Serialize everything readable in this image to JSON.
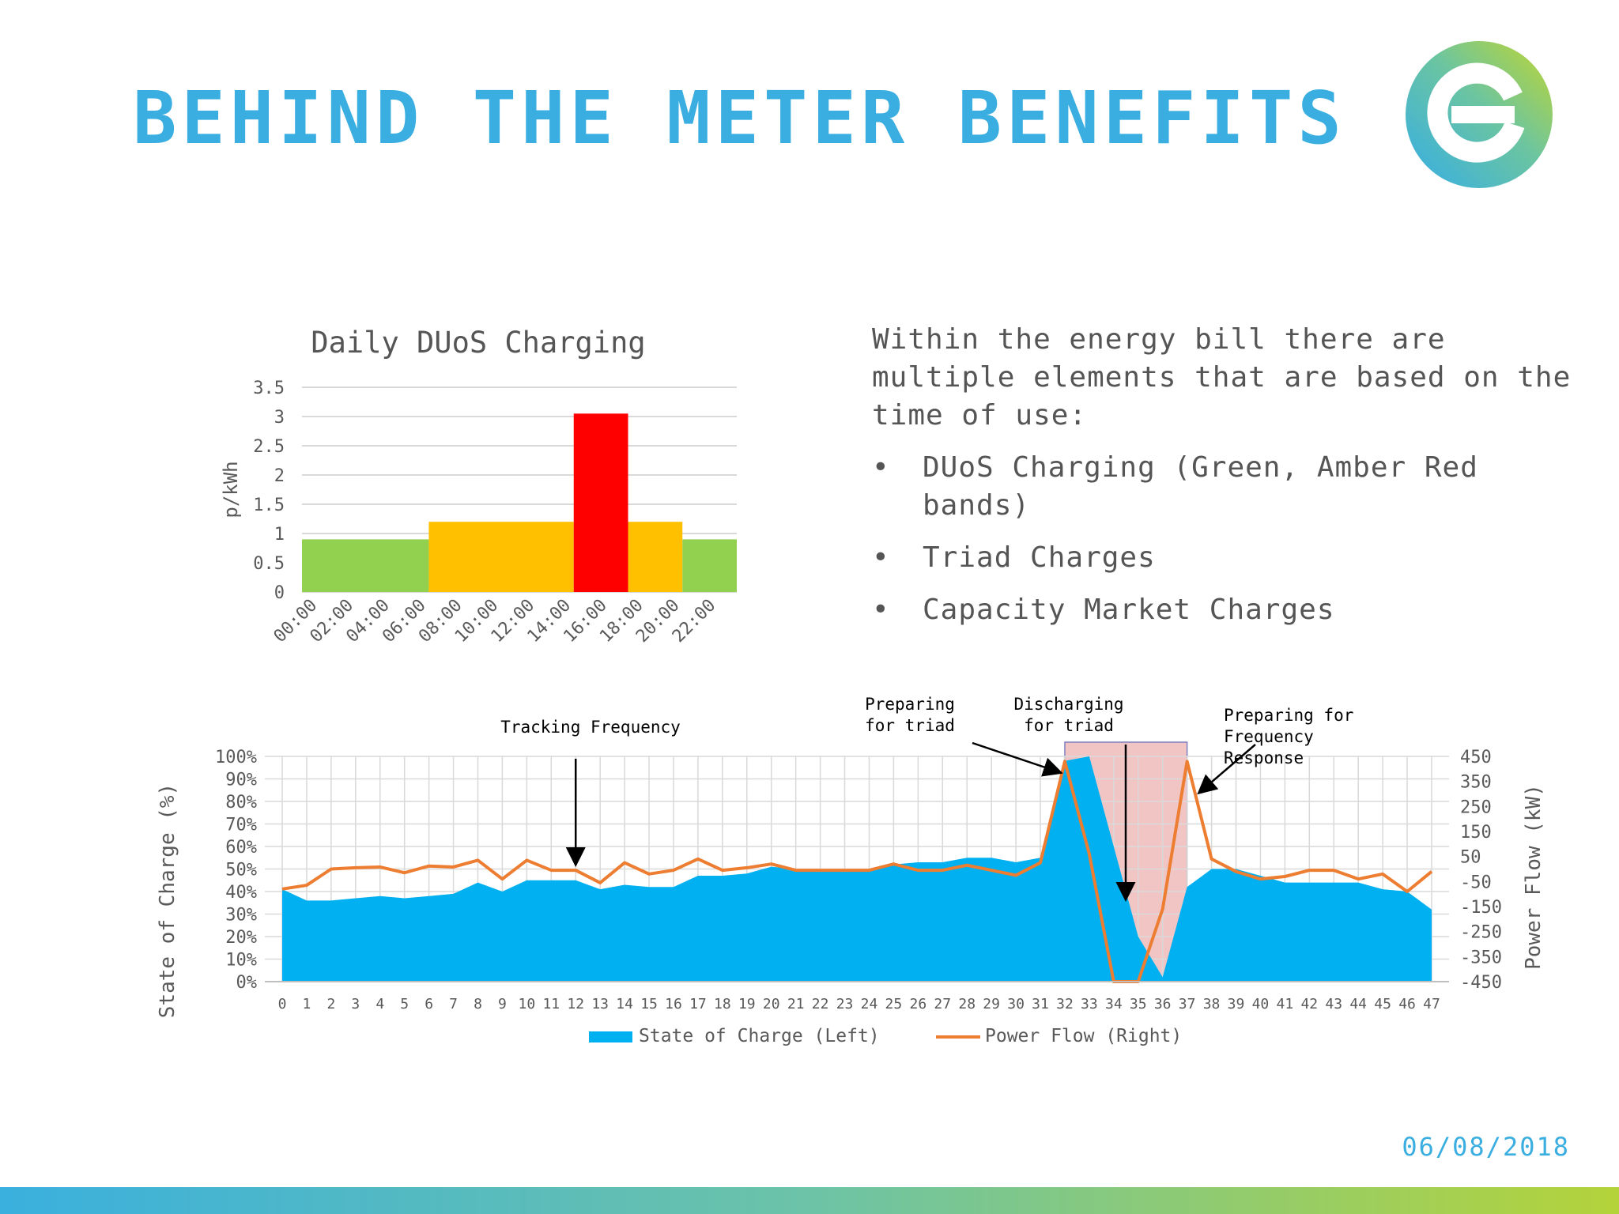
{
  "slide": {
    "title": "BEHIND THE METER BENEFITS",
    "date": "06/08/2018",
    "intro": "Within the energy bill there are multiple elements that are based on the time of use:",
    "bullets": [
      "DUoS Charging (Green, Amber Red bands)",
      "Triad Charges",
      "Capacity Market Charges"
    ],
    "bullet_glyph": "•",
    "logo_icon": "e-logo-icon",
    "colors": {
      "title": "#3aaee0",
      "green": "#92d050",
      "amber": "#ffc000",
      "red": "#ff0000",
      "soc": "#00b0f0",
      "power": "#ed7d31",
      "triad_band": "#f2c5c5"
    }
  },
  "chart_data": [
    {
      "type": "bar",
      "title": "Daily DUoS Charging",
      "ylabel": "p/kWh",
      "xlabel": "",
      "ylim": [
        0,
        3.5
      ],
      "yticks": [
        "0",
        "0.5",
        "1",
        "1.5",
        "2",
        "2.5",
        "3",
        "3.5"
      ],
      "categories": [
        "00:00",
        "02:00",
        "04:00",
        "06:00",
        "08:00",
        "10:00",
        "12:00",
        "14:00",
        "16:00",
        "18:00",
        "20:00",
        "22:00"
      ],
      "bands": [
        {
          "from": "00:00",
          "to": "07:00",
          "value": 0.9,
          "color": "#92d050"
        },
        {
          "from": "07:00",
          "to": "15:00",
          "value": 1.2,
          "color": "#ffc000"
        },
        {
          "from": "15:00",
          "to": "18:00",
          "value": 3.05,
          "color": "#ff0000"
        },
        {
          "from": "18:00",
          "to": "21:00",
          "value": 1.2,
          "color": "#ffc000"
        },
        {
          "from": "21:00",
          "to": "24:00",
          "value": 0.9,
          "color": "#92d050"
        }
      ],
      "grid": true
    },
    {
      "type": "area",
      "x": [
        0,
        1,
        2,
        3,
        4,
        5,
        6,
        7,
        8,
        9,
        10,
        11,
        12,
        13,
        14,
        15,
        16,
        17,
        18,
        19,
        20,
        21,
        22,
        23,
        24,
        25,
        26,
        27,
        28,
        29,
        30,
        31,
        32,
        33,
        34,
        35,
        36,
        37,
        38,
        39,
        40,
        41,
        42,
        43,
        44,
        45,
        46,
        47
      ],
      "ylabel": "State of Charge (%)",
      "y2label": "Power Flow (kW)",
      "ylim": [
        0,
        100
      ],
      "y2lim": [
        -450,
        450
      ],
      "yticks": [
        "0%",
        "10%",
        "20%",
        "30%",
        "40%",
        "50%",
        "60%",
        "70%",
        "80%",
        "90%",
        "100%"
      ],
      "y2ticks": [
        "-450",
        "-350",
        "-250",
        "-150",
        "-50",
        "50",
        "150",
        "250",
        "350",
        "450"
      ],
      "grid": true,
      "legend_position": "bottom",
      "series": [
        {
          "name": "State of Charge (Left)",
          "kind": "area",
          "axis": "left",
          "values": [
            41,
            36,
            36,
            37,
            38,
            37,
            38,
            39,
            44,
            40,
            45,
            45,
            45,
            41,
            43,
            42,
            42,
            47,
            47,
            48,
            51,
            50,
            50,
            50,
            50,
            52,
            53,
            53,
            55,
            55,
            53,
            55,
            98,
            100,
            60,
            20,
            2,
            42,
            50,
            50,
            47,
            44,
            44,
            44,
            44,
            41,
            40,
            32
          ]
        },
        {
          "name": "Power Flow (Right)",
          "kind": "line",
          "axis": "right",
          "values": [
            -80,
            -65,
            0,
            5,
            8,
            -15,
            12,
            8,
            35,
            -40,
            35,
            -5,
            -5,
            -55,
            25,
            -20,
            -5,
            40,
            -5,
            5,
            20,
            -5,
            -5,
            -5,
            -5,
            20,
            -5,
            -5,
            15,
            -5,
            -25,
            25,
            430,
            60,
            -450,
            -450,
            -160,
            430,
            40,
            -10,
            -40,
            -30,
            -5,
            -5,
            -40,
            -20,
            -90,
            -10
          ]
        }
      ],
      "highlight": {
        "from": 32,
        "to": 37,
        "color": "#f2c5c5"
      },
      "annotations": [
        {
          "text": "Tracking Frequency",
          "lines": [
            "Tracking Frequency"
          ],
          "x": 12
        },
        {
          "text": "Preparing for triad",
          "lines": [
            "Preparing",
            "for triad"
          ],
          "x": 31.5
        },
        {
          "text": "Discharging for triad",
          "lines": [
            "Discharging",
            "for triad"
          ],
          "x": 34.5
        },
        {
          "text": "Preparing for Frequency Response",
          "lines": [
            "Preparing for",
            "Frequency",
            "Response"
          ],
          "x": 37.5
        }
      ]
    }
  ]
}
